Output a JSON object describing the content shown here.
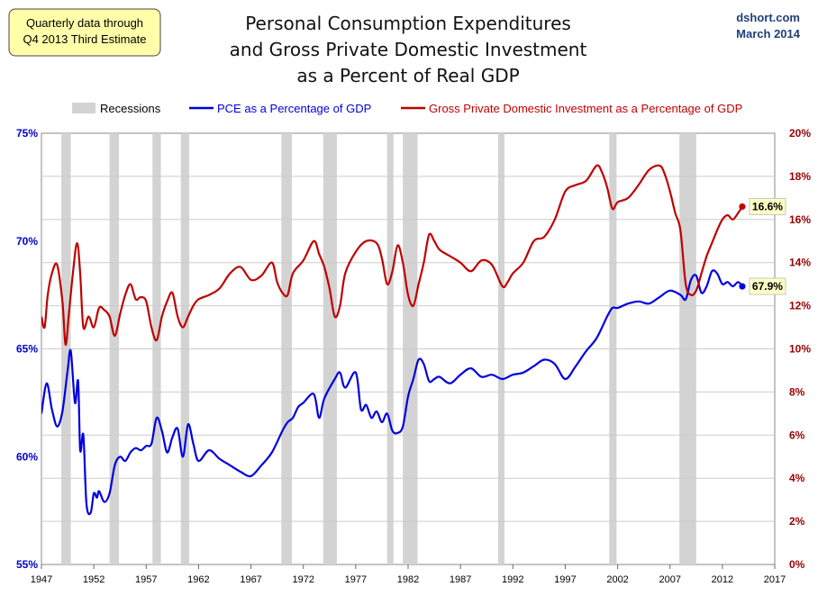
{
  "note": {
    "line1": "Quarterly data through",
    "line2": "Q4 2013 Third Estimate"
  },
  "credit": {
    "site": "dshort.com",
    "date": "March 2014"
  },
  "colors": {
    "pce": "#0000e0",
    "gpdi": "#c00000",
    "recession": "#d3d3d3",
    "note_bg": "#ffffaa",
    "end_label_bg": "#ffffc8"
  },
  "chart_data": {
    "type": "line",
    "title": "Personal Consumption Expenditures and Gross Private Domestic Investment as a Percent of Real GDP",
    "title_lines": [
      "Personal Consumption Expenditures",
      "and Gross Private Domestic Investment",
      "as a Percent of Real GDP"
    ],
    "xlim": [
      1947,
      2017
    ],
    "x_ticks": [
      "1947",
      "1952",
      "1957",
      "1962",
      "1967",
      "1972",
      "1977",
      "1982",
      "1987",
      "1992",
      "1997",
      "2002",
      "2007",
      "2012",
      "2017"
    ],
    "y_left": {
      "label": "PCE as a Percentage of GDP",
      "ylim": [
        55,
        75
      ],
      "ticks": [
        "55%",
        "60%",
        "65%",
        "70%",
        "75%"
      ]
    },
    "y_right": {
      "label": "Gross Private Domestic Investment as a Percentage of GDP",
      "ylim": [
        0,
        20
      ],
      "ticks": [
        "0%",
        "2%",
        "4%",
        "6%",
        "8%",
        "10%",
        "12%",
        "14%",
        "16%",
        "18%",
        "20%"
      ]
    },
    "grid": true,
    "legend": {
      "position": "top",
      "entries": [
        {
          "name": "Recessions",
          "type": "band"
        },
        {
          "name": "PCE as a Percentage of GDP",
          "type": "line"
        },
        {
          "name": "Gross Private Domestic Investment as a Percentage of GDP",
          "type": "line"
        }
      ]
    },
    "recessions": [
      [
        1948.9,
        1949.8
      ],
      [
        1953.5,
        1954.4
      ],
      [
        1957.6,
        1958.4
      ],
      [
        1960.3,
        1961.1
      ],
      [
        1969.9,
        1970.9
      ],
      [
        1973.9,
        1975.2
      ],
      [
        1980.0,
        1980.6
      ],
      [
        1981.5,
        1982.9
      ],
      [
        1990.6,
        1991.2
      ],
      [
        2001.2,
        2001.9
      ],
      [
        2007.9,
        2009.5
      ]
    ],
    "series": [
      {
        "name": "PCE as a Percentage of GDP",
        "axis": "left",
        "x": [
          1947,
          1947.5,
          1948,
          1948.5,
          1949,
          1949.5,
          1949.8,
          1950.2,
          1950.5,
          1950.7,
          1951,
          1951.3,
          1951.7,
          1952,
          1952.3,
          1952.5,
          1953,
          1953.5,
          1954,
          1954.5,
          1955,
          1955.5,
          1956,
          1956.5,
          1957,
          1957.5,
          1958,
          1958.5,
          1959,
          1959.5,
          1960,
          1960.5,
          1961,
          1961.5,
          1962,
          1963,
          1964,
          1965,
          1966,
          1967,
          1968,
          1969,
          1970,
          1970.5,
          1971,
          1971.5,
          1972,
          1973,
          1973.5,
          1974,
          1975,
          1975.5,
          1976,
          1977,
          1977.5,
          1978,
          1978.5,
          1979,
          1979.5,
          1980,
          1980.5,
          1981,
          1981.5,
          1982,
          1982.5,
          1983,
          1983.5,
          1984,
          1984.5,
          1985,
          1986,
          1987,
          1988,
          1989,
          1990,
          1991,
          1992,
          1993,
          1994,
          1995,
          1996,
          1997,
          1998,
          1999,
          2000,
          2001,
          2001.5,
          2002,
          2003,
          2004,
          2005,
          2006,
          2007,
          2008,
          2008.5,
          2009,
          2009.5,
          2010,
          2010.5,
          2011,
          2011.5,
          2012,
          2012.5,
          2013,
          2013.5,
          2013.9
        ],
        "values": [
          62.0,
          63.4,
          62.2,
          61.4,
          62.1,
          64.0,
          64.9,
          62.5,
          63.5,
          60.3,
          61.0,
          57.8,
          57.4,
          58.3,
          58.1,
          58.4,
          57.9,
          58.3,
          59.6,
          60.0,
          59.8,
          60.2,
          60.4,
          60.3,
          60.5,
          60.6,
          61.8,
          61.2,
          60.2,
          60.9,
          61.3,
          60.0,
          61.5,
          60.6,
          59.8,
          60.3,
          59.9,
          59.6,
          59.3,
          59.1,
          59.6,
          60.2,
          61.2,
          61.6,
          61.8,
          62.3,
          62.5,
          62.9,
          61.8,
          62.7,
          63.6,
          63.9,
          63.2,
          63.9,
          62.2,
          62.4,
          61.8,
          62.1,
          61.6,
          62.0,
          61.2,
          61.1,
          61.4,
          62.8,
          63.6,
          64.5,
          64.3,
          63.5,
          63.6,
          63.7,
          63.4,
          63.8,
          64.1,
          63.7,
          63.8,
          63.6,
          63.8,
          63.9,
          64.2,
          64.5,
          64.3,
          63.6,
          64.2,
          64.9,
          65.5,
          66.5,
          66.9,
          66.9,
          67.1,
          67.2,
          67.1,
          67.4,
          67.7,
          67.5,
          67.3,
          68.2,
          68.4,
          67.6,
          67.9,
          68.6,
          68.5,
          68.0,
          68.1,
          67.9,
          68.1,
          67.9
        ]
      },
      {
        "name": "Gross Private Domestic Investment as a Percentage of GDP",
        "axis": "right",
        "x": [
          1947,
          1947.3,
          1947.6,
          1948,
          1948.5,
          1949,
          1949.3,
          1949.6,
          1950,
          1950.4,
          1950.7,
          1951,
          1951.5,
          1952,
          1952.5,
          1953,
          1953.5,
          1954,
          1954.5,
          1955,
          1955.5,
          1956,
          1956.5,
          1957,
          1957.5,
          1958,
          1958.5,
          1959,
          1959.5,
          1960,
          1960.5,
          1961,
          1961.5,
          1962,
          1963,
          1964,
          1965,
          1966,
          1967,
          1968,
          1969,
          1969.5,
          1970,
          1970.5,
          1971,
          1972,
          1973,
          1973.5,
          1974,
          1974.5,
          1975,
          1975.5,
          1976,
          1977,
          1978,
          1979,
          1979.5,
          1980,
          1980.5,
          1981,
          1981.5,
          1982,
          1982.5,
          1983,
          1983.5,
          1984,
          1984.5,
          1985,
          1986,
          1987,
          1988,
          1989,
          1990,
          1991,
          1991.5,
          1992,
          1993,
          1994,
          1995,
          1996,
          1997,
          1998,
          1999,
          2000,
          2000.5,
          2001,
          2001.5,
          2002,
          2003,
          2004,
          2005,
          2006,
          2006.5,
          2007,
          2007.5,
          2008,
          2008.5,
          2009,
          2009.5,
          2010,
          2010.5,
          2011,
          2011.5,
          2012,
          2012.5,
          2013,
          2013.5,
          2013.9
        ],
        "values": [
          11.5,
          11.0,
          12.5,
          13.5,
          13.9,
          12.2,
          10.2,
          11.5,
          13.5,
          14.9,
          13.5,
          11.0,
          11.5,
          11.0,
          11.9,
          11.8,
          11.5,
          10.6,
          11.6,
          12.5,
          13.0,
          12.3,
          12.4,
          12.2,
          11.0,
          10.4,
          11.5,
          12.2,
          12.6,
          11.5,
          11.0,
          11.5,
          12.0,
          12.3,
          12.5,
          12.8,
          13.5,
          13.8,
          13.2,
          13.4,
          14.0,
          13.1,
          12.6,
          12.5,
          13.5,
          14.1,
          15.0,
          14.4,
          13.8,
          12.8,
          11.5,
          12.0,
          13.5,
          14.5,
          15.0,
          14.9,
          14.2,
          13.0,
          13.6,
          14.8,
          14.0,
          12.5,
          12.0,
          13.0,
          14.0,
          15.3,
          15.0,
          14.6,
          14.3,
          14.0,
          13.6,
          14.1,
          13.9,
          12.9,
          13.1,
          13.5,
          14.0,
          15.0,
          15.2,
          16.0,
          17.3,
          17.6,
          17.8,
          18.5,
          18.2,
          17.5,
          16.5,
          16.8,
          17.0,
          17.6,
          18.3,
          18.5,
          18.1,
          17.3,
          16.3,
          15.5,
          13.0,
          12.5,
          12.7,
          13.5,
          14.3,
          14.9,
          15.5,
          16.0,
          16.2,
          16.0,
          16.3,
          16.6
        ]
      }
    ],
    "end_labels": [
      {
        "series": "Gross Private Domestic Investment as a Percentage of GDP",
        "x": 2013.9,
        "value": 16.6,
        "text": "16.6%"
      },
      {
        "series": "PCE as a Percentage of GDP",
        "x": 2013.9,
        "value": 67.9,
        "text": "67.9%"
      }
    ]
  }
}
